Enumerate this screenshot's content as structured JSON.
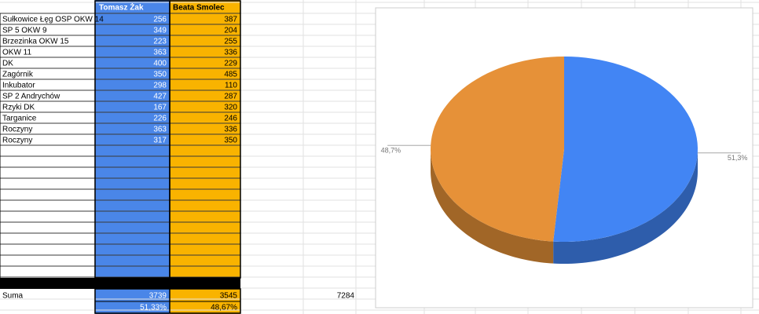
{
  "table": {
    "header": [
      "Tomasz Żak",
      "Beata Smolec"
    ],
    "rows": [
      [
        "Sułkowice Łęg OSP OKW 14",
        256,
        387
      ],
      [
        "SP 5 OKW 9",
        349,
        204
      ],
      [
        "Brzezinka OKW 15",
        223,
        255
      ],
      [
        "OKW 11",
        363,
        336
      ],
      [
        "DK",
        400,
        229
      ],
      [
        "Zagórnik",
        350,
        485
      ],
      [
        "Inkubator",
        298,
        110
      ],
      [
        "SP 2 Andrychów",
        427,
        287
      ],
      [
        "Rzyki DK",
        167,
        320
      ],
      [
        "Targanice",
        226,
        246
      ],
      [
        "Roczyny",
        363,
        336
      ],
      [
        "Roczyny",
        317,
        350
      ]
    ],
    "total": {
      "label": "Suma",
      "values": [
        3739,
        3545
      ],
      "sum": 7284
    },
    "shares": [
      "51,33%",
      "48,67%"
    ]
  },
  "chart_data": {
    "type": "pie",
    "values": [
      51.3,
      48.7
    ],
    "value_labels": [
      "51,3%",
      "48,7%"
    ],
    "colors": [
      "#4285f4",
      "#e69138"
    ]
  }
}
